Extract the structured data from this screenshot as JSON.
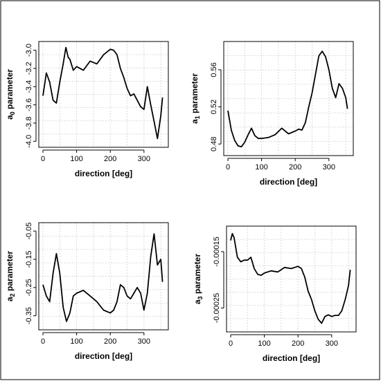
{
  "chart_data": [
    {
      "type": "line",
      "xlabel": "direction [deg]",
      "ylabel": "a",
      "ylabel_sub": "0",
      "ylabel_rest": " parameter",
      "xlim": [
        0,
        360
      ],
      "ylim": [
        -4.02,
        -2.95
      ],
      "xticks": [
        0,
        100,
        200,
        300
      ],
      "xtick_labels": [
        "0",
        "100",
        "200",
        "300"
      ],
      "yticks": [
        -3.0,
        -3.2,
        -3.4,
        -3.6,
        -3.8,
        -4.0
      ],
      "ytick_labels": [
        "-3.0",
        "-3.2",
        "-3.4",
        "-3.6",
        "-3.8",
        "-4.0"
      ],
      "grid": true,
      "series": [
        {
          "x": [
            0,
            10,
            20,
            30,
            40,
            50,
            60,
            68,
            75,
            80,
            90,
            100,
            120,
            140,
            160,
            180,
            190,
            200,
            210,
            220,
            230,
            240,
            250,
            260,
            270,
            280,
            290,
            300,
            310,
            320,
            330,
            340,
            350,
            355
          ],
          "y": [
            -3.5,
            -3.25,
            -3.35,
            -3.55,
            -3.58,
            -3.35,
            -3.15,
            -2.97,
            -3.08,
            -3.1,
            -3.22,
            -3.18,
            -3.22,
            -3.12,
            -3.15,
            -3.05,
            -3.02,
            -2.99,
            -3.0,
            -3.05,
            -3.2,
            -3.3,
            -3.42,
            -3.5,
            -3.48,
            -3.55,
            -3.62,
            -3.65,
            -3.4,
            -3.6,
            -3.78,
            -3.97,
            -3.72,
            -3.52
          ]
        }
      ]
    },
    {
      "type": "line",
      "xlabel": "direction [deg]",
      "ylabel": "a",
      "ylabel_sub": "1",
      "ylabel_rest": " parameter",
      "xlim": [
        0,
        360
      ],
      "ylim": [
        0.472,
        0.586
      ],
      "xticks": [
        0,
        100,
        200,
        300
      ],
      "xtick_labels": [
        "0",
        "100",
        "200",
        "300"
      ],
      "yticks": [
        0.48,
        0.52,
        0.56
      ],
      "ytick_labels": [
        "0.48",
        "0.52",
        "0.56"
      ],
      "grid": true,
      "series": [
        {
          "x": [
            0,
            10,
            20,
            30,
            40,
            50,
            60,
            70,
            80,
            90,
            100,
            120,
            140,
            160,
            180,
            200,
            210,
            220,
            230,
            240,
            250,
            260,
            270,
            280,
            290,
            300,
            310,
            320,
            330,
            340,
            350,
            355
          ],
          "y": [
            0.516,
            0.495,
            0.484,
            0.478,
            0.477,
            0.482,
            0.49,
            0.497,
            0.489,
            0.486,
            0.486,
            0.487,
            0.49,
            0.497,
            0.491,
            0.494,
            0.496,
            0.495,
            0.503,
            0.52,
            0.535,
            0.555,
            0.575,
            0.58,
            0.574,
            0.56,
            0.54,
            0.53,
            0.545,
            0.54,
            0.53,
            0.518
          ]
        }
      ]
    },
    {
      "type": "line",
      "xlabel": "direction [deg]",
      "ylabel": "a",
      "ylabel_sub": "2",
      "ylabel_rest": " parameter",
      "xlim": [
        0,
        360
      ],
      "ylim": [
        -0.385,
        -0.035
      ],
      "xticks": [
        0,
        100,
        200,
        300
      ],
      "xtick_labels": [
        "0",
        "100",
        "200",
        "300"
      ],
      "yticks": [
        -0.05,
        -0.15,
        -0.25,
        -0.35
      ],
      "ytick_labels": [
        "-0.05",
        "-0.15",
        "-0.25",
        "-0.35"
      ],
      "grid": true,
      "series": [
        {
          "x": [
            0,
            10,
            20,
            30,
            40,
            50,
            60,
            70,
            80,
            90,
            100,
            120,
            140,
            160,
            180,
            200,
            210,
            220,
            230,
            240,
            250,
            260,
            270,
            280,
            290,
            300,
            310,
            320,
            330,
            340,
            350,
            355
          ],
          "y": [
            -0.24,
            -0.28,
            -0.3,
            -0.2,
            -0.13,
            -0.2,
            -0.32,
            -0.37,
            -0.34,
            -0.28,
            -0.27,
            -0.26,
            -0.28,
            -0.3,
            -0.33,
            -0.34,
            -0.33,
            -0.3,
            -0.24,
            -0.25,
            -0.28,
            -0.29,
            -0.27,
            -0.25,
            -0.27,
            -0.33,
            -0.27,
            -0.14,
            -0.06,
            -0.17,
            -0.15,
            -0.23
          ]
        }
      ]
    },
    {
      "type": "line",
      "xlabel": "direction [deg]",
      "ylabel": "a",
      "ylabel_sub": "3",
      "ylabel_rest": " parameter",
      "xlim": [
        0,
        360
      ],
      "ylim": [
        -0.000285,
        -0.000112
      ],
      "xticks": [
        0,
        100,
        200,
        300
      ],
      "xtick_labels": [
        "0",
        "100",
        "200",
        "300"
      ],
      "yticks": [
        -0.00015,
        -0.00025
      ],
      "ytick_labels": [
        "-0.00015",
        "-0.00025"
      ],
      "grid": true,
      "series": [
        {
          "x": [
            0,
            5,
            10,
            20,
            30,
            40,
            50,
            60,
            70,
            80,
            90,
            100,
            120,
            140,
            160,
            180,
            200,
            210,
            220,
            230,
            240,
            250,
            260,
            270,
            280,
            290,
            300,
            310,
            320,
            330,
            340,
            350,
            355
          ],
          "y": [
            -0.00013,
            -0.000118,
            -0.000125,
            -0.00016,
            -0.000168,
            -0.000165,
            -0.000165,
            -0.00016,
            -0.00018,
            -0.00019,
            -0.000192,
            -0.000188,
            -0.000184,
            -0.000186,
            -0.000178,
            -0.00018,
            -0.000176,
            -0.00018,
            -0.000195,
            -0.00022,
            -0.000235,
            -0.000255,
            -0.00027,
            -0.000277,
            -0.000265,
            -0.000262,
            -0.000265,
            -0.000263,
            -0.000263,
            -0.000255,
            -0.000235,
            -0.00021,
            -0.000182
          ]
        }
      ]
    }
  ]
}
